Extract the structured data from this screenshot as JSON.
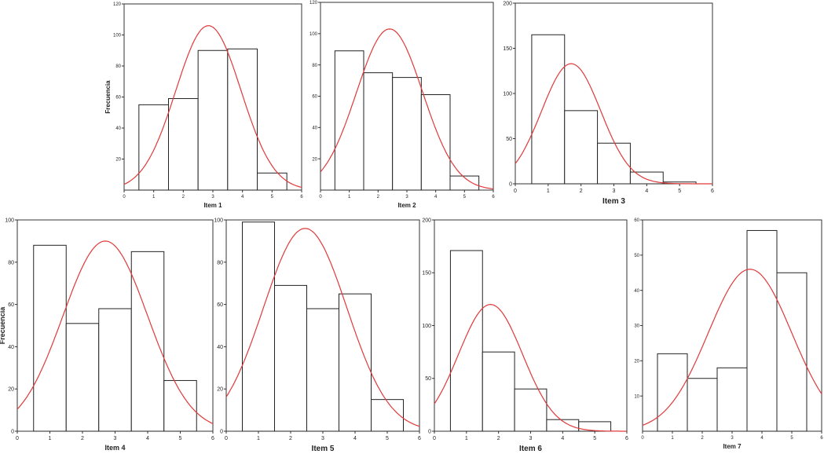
{
  "ylabel": "Frecuencia",
  "chart_data": [
    {
      "type": "bar",
      "title": "",
      "xlabel": "Item 1",
      "ylabel": "Frecuencia",
      "xlim": [
        0,
        6
      ],
      "xticks": [
        0,
        1,
        2,
        3,
        4,
        5,
        6
      ],
      "ylim": [
        0,
        120
      ],
      "yticks": [
        20,
        40,
        60,
        80,
        100,
        120
      ],
      "categories": [
        "1",
        "2",
        "3",
        "4",
        "5"
      ],
      "values": [
        55,
        59,
        90,
        91,
        11
      ],
      "normal_curve": {
        "mean": 2.85,
        "sd": 1.1,
        "peak": 106
      }
    },
    {
      "type": "bar",
      "title": "",
      "xlabel": "Item 2",
      "ylabel": "",
      "xlim": [
        0,
        6
      ],
      "xticks": [
        0,
        1,
        2,
        3,
        4,
        5,
        6
      ],
      "ylim": [
        0,
        120
      ],
      "yticks": [
        20,
        40,
        60,
        80,
        100,
        120
      ],
      "categories": [
        "1",
        "2",
        "3",
        "4",
        "5"
      ],
      "values": [
        89,
        75,
        72,
        61,
        9
      ],
      "normal_curve": {
        "mean": 2.4,
        "sd": 1.15,
        "peak": 103
      }
    },
    {
      "type": "bar",
      "title": "",
      "xlabel": "Item 3",
      "ylabel": "",
      "xlim": [
        0,
        6
      ],
      "xticks": [
        0,
        1,
        2,
        3,
        4,
        5,
        6
      ],
      "ylim": [
        0,
        200
      ],
      "yticks": [
        0,
        50,
        100,
        150,
        200
      ],
      "categories": [
        "1",
        "2",
        "3",
        "4",
        "5"
      ],
      "values": [
        165,
        81,
        45,
        13,
        2
      ],
      "normal_curve": {
        "mean": 1.7,
        "sd": 0.9,
        "peak": 133
      }
    },
    {
      "type": "bar",
      "title": "",
      "xlabel": "Item 4",
      "ylabel": "Frecuencia",
      "xlim": [
        0,
        6
      ],
      "xticks": [
        0,
        1,
        2,
        3,
        4,
        5,
        6
      ],
      "ylim": [
        0,
        100
      ],
      "yticks": [
        0,
        20,
        40,
        60,
        80,
        100
      ],
      "categories": [
        "1",
        "2",
        "3",
        "4",
        "5"
      ],
      "values": [
        88,
        51,
        58,
        85,
        24
      ],
      "normal_curve": {
        "mean": 2.7,
        "sd": 1.3,
        "peak": 90
      }
    },
    {
      "type": "bar",
      "title": "",
      "xlabel": "Item 5",
      "ylabel": "",
      "xlim": [
        0,
        6
      ],
      "xticks": [
        0,
        1,
        2,
        3,
        4,
        5,
        6
      ],
      "ylim": [
        0,
        100
      ],
      "yticks": [
        0,
        20,
        40,
        60,
        80,
        100
      ],
      "categories": [
        "1",
        "2",
        "3",
        "4",
        "5"
      ],
      "values": [
        99,
        69,
        58,
        65,
        15
      ],
      "normal_curve": {
        "mean": 2.45,
        "sd": 1.3,
        "peak": 96
      }
    },
    {
      "type": "bar",
      "title": "",
      "xlabel": "Item 6",
      "ylabel": "",
      "xlim": [
        0,
        6
      ],
      "xticks": [
        0,
        1,
        2,
        3,
        4,
        5,
        6
      ],
      "ylim": [
        0,
        200
      ],
      "yticks": [
        0,
        50,
        100,
        150,
        200
      ],
      "categories": [
        "1",
        "2",
        "3",
        "4",
        "5"
      ],
      "values": [
        171,
        75,
        40,
        11,
        9
      ],
      "normal_curve": {
        "mean": 1.75,
        "sd": 1.0,
        "peak": 120
      }
    },
    {
      "type": "bar",
      "title": "",
      "xlabel": "Item 7",
      "ylabel": "",
      "xlim": [
        0,
        6
      ],
      "xticks": [
        0,
        1,
        2,
        3,
        4,
        5,
        6
      ],
      "ylim": [
        0,
        60
      ],
      "yticks": [
        10,
        20,
        30,
        40,
        50,
        60
      ],
      "categories": [
        "1",
        "2",
        "3",
        "4",
        "5"
      ],
      "values": [
        22,
        15,
        18,
        57,
        45
      ],
      "normal_curve": {
        "mean": 3.6,
        "sd": 1.4,
        "peak": 46
      }
    }
  ]
}
